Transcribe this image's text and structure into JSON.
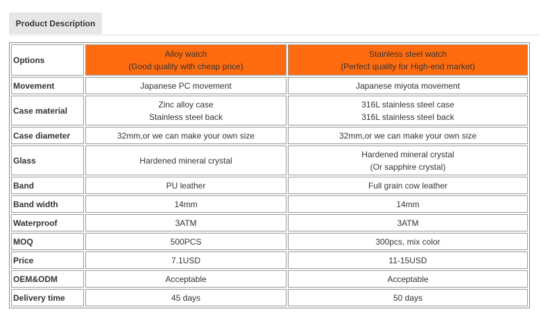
{
  "tab": {
    "label": "Product Description"
  },
  "table": {
    "options_label": "Options",
    "columns": [
      {
        "title": "Alloy watch",
        "subtitle": "(Good quality with cheap price)"
      },
      {
        "title": "Stainless steel watch",
        "subtitle": "(Perfect quality for High-end market)"
      }
    ],
    "rows": [
      {
        "label": "Movement",
        "alloy": [
          "Japanese PC movement"
        ],
        "steel": [
          "Japanese miyota movement"
        ]
      },
      {
        "label": "Case material",
        "alloy": [
          "Zinc alloy case",
          "Stainless steel back"
        ],
        "steel": [
          "316L stainless steel case",
          "316L stainless steel back"
        ]
      },
      {
        "label": "Case diameter",
        "alloy": [
          "32mm,or we can make your own size"
        ],
        "steel": [
          "32mm,or we can make your own size"
        ]
      },
      {
        "label": "Glass",
        "alloy": [
          "Hardened mineral crystal"
        ],
        "steel": [
          "Hardened mineral crystal",
          "(Or sapphire crystal)"
        ]
      },
      {
        "label": "Band",
        "alloy": [
          "PU leather"
        ],
        "steel": [
          "Full grain cow leather"
        ]
      },
      {
        "label": "Band width",
        "alloy": [
          "14mm"
        ],
        "steel": [
          "14mm"
        ]
      },
      {
        "label": "Waterproof",
        "alloy": [
          "3ATM"
        ],
        "steel": [
          "3ATM"
        ]
      },
      {
        "label": "MOQ",
        "alloy": [
          "500PCS"
        ],
        "steel": [
          "300pcs, mix color"
        ]
      },
      {
        "label": "Price",
        "alloy": [
          "7.1USD"
        ],
        "steel": [
          "11-15USD"
        ]
      },
      {
        "label": "OEM&ODM",
        "alloy": [
          "Acceptable"
        ],
        "steel": [
          "Acceptable"
        ]
      },
      {
        "label": "Delivery time",
        "alloy": [
          "45 days"
        ],
        "steel": [
          "50 days"
        ]
      }
    ]
  },
  "colors": {
    "header_bg": "#ff6c10",
    "tab_bg": "#e6e6e6"
  }
}
